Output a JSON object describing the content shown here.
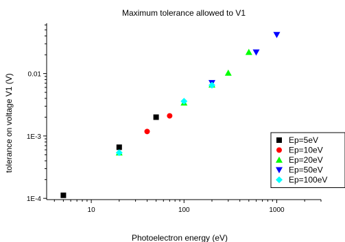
{
  "chart_data": {
    "type": "scatter",
    "title": "Maximum tolerance allowed to V1",
    "xlabel": "Photoelectron energy (eV)",
    "ylabel": "tolerance on voltage V1 (V)",
    "x_scale": "log",
    "y_scale": "log",
    "xlim": [
      3.3,
      3000
    ],
    "ylim": [
      9.55e-05,
      0.064
    ],
    "x_ticks": [
      {
        "value": 10,
        "label": "10"
      },
      {
        "value": 100,
        "label": "100"
      },
      {
        "value": 1000,
        "label": "1000"
      }
    ],
    "y_ticks": [
      {
        "value": 0.0001,
        "label": "1E-4"
      },
      {
        "value": 0.001,
        "label": "1E-3"
      },
      {
        "value": 0.01,
        "label": "0.01"
      }
    ],
    "grid": false,
    "legend_position": "right",
    "series": [
      {
        "name": "Ep=5eV",
        "marker": "square",
        "color": "#000000",
        "x": [
          5,
          20,
          50
        ],
        "y": [
          0.000112,
          0.00066,
          0.002
        ]
      },
      {
        "name": "Ep=10eV",
        "marker": "circle",
        "color": "#ff0000",
        "x": [
          40,
          70
        ],
        "y": [
          0.00118,
          0.0021
        ]
      },
      {
        "name": "Ep=20eV",
        "marker": "triangle-up",
        "color": "#00ff00",
        "x": [
          20,
          100,
          200,
          300,
          500
        ],
        "y": [
          0.00054,
          0.0034,
          0.0066,
          0.0102,
          0.022
        ]
      },
      {
        "name": "Ep=50eV",
        "marker": "triangle-down",
        "color": "#0000ff",
        "x": [
          200,
          600,
          1000
        ],
        "y": [
          0.0071,
          0.022,
          0.042
        ]
      },
      {
        "name": "Ep=100eV",
        "marker": "diamond",
        "color": "#00ffff",
        "x": [
          20,
          100,
          200
        ],
        "y": [
          0.00054,
          0.0036,
          0.0065
        ]
      }
    ]
  }
}
